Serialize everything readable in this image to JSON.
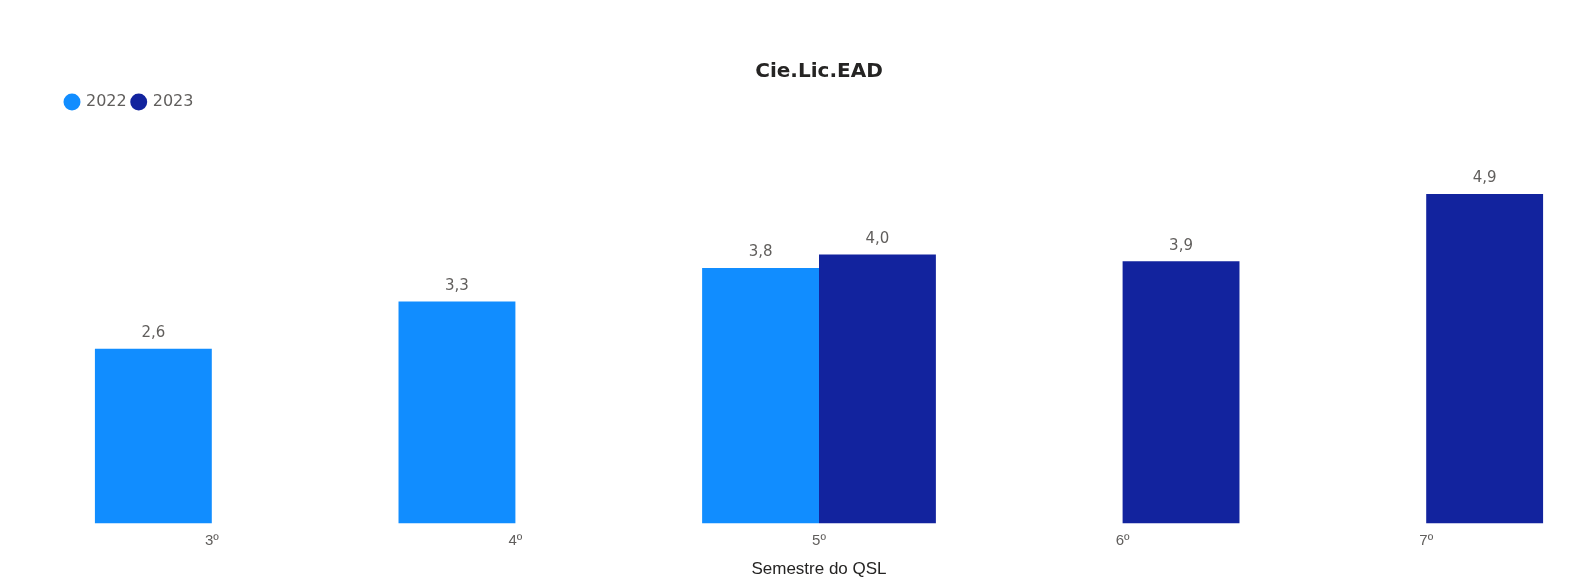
{
  "chart_data": {
    "type": "bar",
    "title": "Cie.Lic.EAD",
    "xlabel": "Semestre do QSL",
    "categories": [
      "3º",
      "4º",
      "5º",
      "6º",
      "7º"
    ],
    "series": [
      {
        "name": "2022",
        "color": "#118dff",
        "values": [
          2.6,
          3.3,
          3.8,
          null,
          null
        ],
        "value_labels": [
          "2,6",
          "3,3",
          "3,8",
          null,
          null
        ]
      },
      {
        "name": "2023",
        "color": "#12239e",
        "values": [
          null,
          null,
          4.0,
          3.9,
          4.9
        ],
        "value_labels": [
          null,
          null,
          "4,0",
          "3,9",
          "4,9"
        ]
      }
    ],
    "grid": false,
    "legend": "top left",
    "tick_labels": "x"
  }
}
